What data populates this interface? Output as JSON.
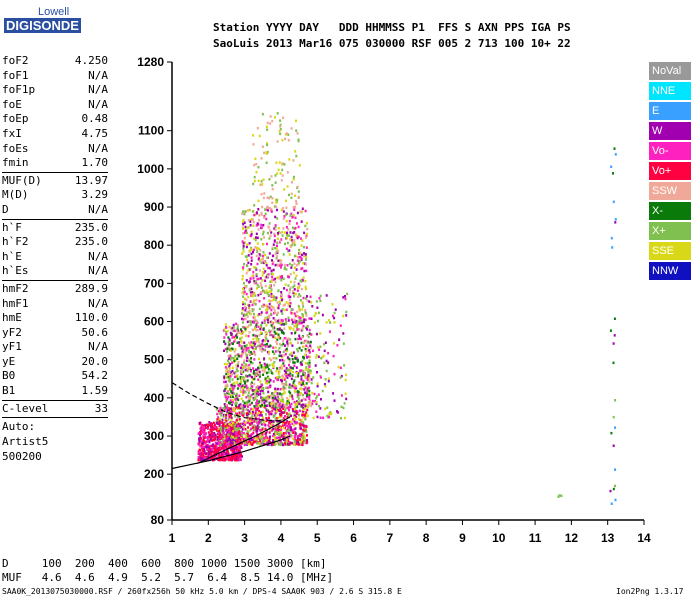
{
  "logo": {
    "line1": "Lowell",
    "line2": "DIGISONDE"
  },
  "header": {
    "line1": "Station YYYY DAY   DDD HHMMSS P1  FFS S AXN PPS IGA PS",
    "line2": "SaoLuis 2013 Mar16 075 030000 RSF 005 2 713 100 10+ 22"
  },
  "params": [
    {
      "name": "foF2",
      "value": "4.250"
    },
    {
      "name": "foF1",
      "value": "N/A"
    },
    {
      "name": "foF1p",
      "value": "N/A"
    },
    {
      "name": "foE",
      "value": "N/A"
    },
    {
      "name": "foEp",
      "value": "0.48"
    },
    {
      "name": "fxI",
      "value": "4.75"
    },
    {
      "name": "foEs",
      "value": "N/A"
    },
    {
      "name": "fmin",
      "value": "1.70"
    },
    {
      "sep": true
    },
    {
      "name": "MUF(D)",
      "value": "13.97"
    },
    {
      "name": "M(D)",
      "value": "3.29"
    },
    {
      "name": "D",
      "value": "N/A"
    },
    {
      "sep": true
    },
    {
      "name": "h`F",
      "value": "235.0"
    },
    {
      "name": "h`F2",
      "value": "235.0"
    },
    {
      "name": "h`E",
      "value": "N/A"
    },
    {
      "name": "h`Es",
      "value": "N/A"
    },
    {
      "sep": true
    },
    {
      "name": "hmF2",
      "value": "289.9"
    },
    {
      "name": "hmF1",
      "value": "N/A"
    },
    {
      "name": "hmE",
      "value": "110.0"
    },
    {
      "name": "yF2",
      "value": "50.6"
    },
    {
      "name": "yF1",
      "value": "N/A"
    },
    {
      "name": "yE",
      "value": "20.0"
    },
    {
      "name": "B0",
      "value": "54.2"
    },
    {
      "name": "B1",
      "value": "1.59"
    },
    {
      "sep": true
    },
    {
      "name": "C-level",
      "value": "33"
    },
    {
      "sep": true
    }
  ],
  "auto_lines": [
    "Auto:",
    "Artist5",
    "500200"
  ],
  "legend": [
    {
      "label": "NoVal",
      "color": "#999999"
    },
    {
      "label": "NNE",
      "color": "#00e5ff"
    },
    {
      "label": "E",
      "color": "#3aa0ff"
    },
    {
      "label": "W",
      "color": "#a000b0"
    },
    {
      "label": "Vo-",
      "color": "#ff20c0"
    },
    {
      "label": "Vo+",
      "color": "#ff0040"
    },
    {
      "label": "SSW",
      "color": "#f0a898"
    },
    {
      "label": "X-",
      "color": "#0a7a0a"
    },
    {
      "label": "X+",
      "color": "#80c050"
    },
    {
      "label": "SSE",
      "color": "#d8d818"
    },
    {
      "label": "NNW",
      "color": "#1010c0"
    }
  ],
  "footer": {
    "d_line": "D     100  200  400  600  800 1000 1500 3000 [km]",
    "muf_line": "MUF   4.6  4.6  4.9  5.2  5.7  6.4  8.5 14.0 [MHz]",
    "file_line": "SAA0K_2013075030000.RSF / 260fx256h 50 kHz 5.0 km / DPS-4 SAA0K 903 / 2.6 S 315.8 E",
    "version": "Ion2Png 1.3.17"
  },
  "chart_data": {
    "type": "scatter",
    "x_ticks": [
      1,
      2,
      3,
      4,
      5,
      6,
      7,
      8,
      9,
      10,
      11,
      12,
      13,
      14
    ],
    "y_ticks": [
      80,
      200,
      300,
      400,
      500,
      600,
      700,
      800,
      900,
      1000,
      1100,
      1280
    ],
    "xlim": [
      1,
      14
    ],
    "ylim": [
      80,
      1280
    ],
    "x_unit": "MHz",
    "y_unit": "km",
    "grid": false,
    "seed": 12345,
    "echo_clouds": [
      {
        "fmin": 1.7,
        "fmax": 2.9,
        "hmin": 240,
        "hmax": 340,
        "n": 700,
        "colors": [
          "#ff0040",
          "#ff20c0",
          "#ff0040",
          "#a000b0"
        ]
      },
      {
        "fmin": 2.2,
        "fmax": 4.7,
        "hmin": 280,
        "hmax": 380,
        "n": 900,
        "colors": [
          "#ff20c0",
          "#a000b0",
          "#80c050",
          "#d8d818",
          "#ff0040"
        ]
      },
      {
        "fmin": 2.4,
        "fmax": 4.8,
        "hmin": 380,
        "hmax": 600,
        "n": 1100,
        "colors": [
          "#80c050",
          "#d8d818",
          "#a000b0",
          "#ff20c0",
          "#0a7a0a",
          "#f0a898"
        ]
      },
      {
        "fmin": 2.9,
        "fmax": 4.7,
        "hmin": 600,
        "hmax": 900,
        "n": 700,
        "colors": [
          "#d8d818",
          "#80c050",
          "#ff20c0",
          "#a000b0",
          "#f0a898"
        ]
      },
      {
        "fmin": 3.2,
        "fmax": 4.5,
        "hmin": 900,
        "hmax": 1150,
        "n": 120,
        "colors": [
          "#d8d818",
          "#80c050",
          "#f0a898"
        ]
      },
      {
        "fmin": 4.7,
        "fmax": 5.8,
        "hmin": 350,
        "hmax": 680,
        "n": 140,
        "colors": [
          "#a000b0",
          "#ff20c0",
          "#d8d818",
          "#80c050"
        ]
      },
      {
        "fmin": 13.05,
        "fmax": 13.2,
        "hmin": 90,
        "hmax": 1130,
        "n": 25,
        "colors": [
          "#0a7a0a",
          "#3aa0ff",
          "#80c050",
          "#a000b0"
        ]
      },
      {
        "fmin": 11.6,
        "fmax": 11.7,
        "hmin": 140,
        "hmax": 165,
        "n": 3,
        "colors": [
          "#80c050",
          "#f0a898"
        ]
      }
    ],
    "traces": [
      {
        "name": "virtual-height-trace",
        "style": "solid",
        "points": [
          [
            1,
            215
          ],
          [
            2,
            235
          ],
          [
            3,
            260
          ],
          [
            4,
            290
          ],
          [
            4.25,
            300
          ]
        ]
      },
      {
        "name": "profile-trace-solid",
        "style": "solid",
        "points": [
          [
            1.7,
            228
          ],
          [
            2.5,
            265
          ],
          [
            3.3,
            300
          ],
          [
            3.9,
            330
          ],
          [
            4.25,
            350
          ]
        ]
      },
      {
        "name": "profile-trace-dashed",
        "style": "dashed",
        "points": [
          [
            1,
            440
          ],
          [
            1.5,
            410
          ],
          [
            2,
            385
          ],
          [
            2.5,
            362
          ],
          [
            3,
            348
          ],
          [
            3.5,
            342
          ],
          [
            4,
            340
          ]
        ]
      }
    ]
  }
}
